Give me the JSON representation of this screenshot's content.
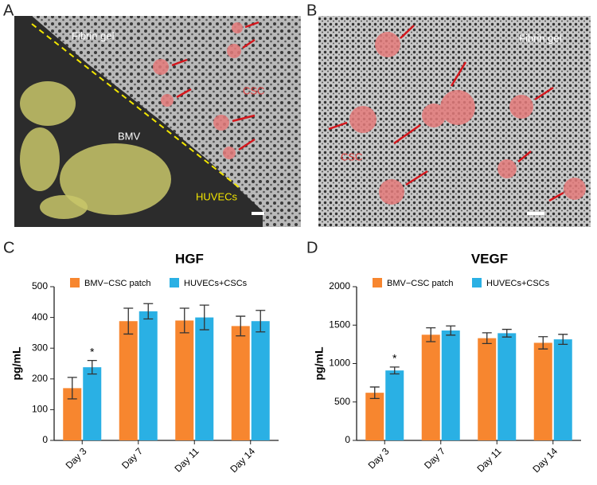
{
  "panels": {
    "a": {
      "label": "A",
      "fibrin": "Fibrin gel",
      "csc": "CSC",
      "bmv": "BMV",
      "huvecs": "HUVECs"
    },
    "b": {
      "label": "B",
      "fibrin": "Fibrin gel",
      "csc": "CSC"
    },
    "c": "C",
    "d": "D"
  },
  "chart_data": [
    {
      "type": "bar",
      "title": "HGF",
      "y_label": "pg/mL",
      "categories": [
        "Day 3",
        "Day 7",
        "Day 11",
        "Day 14"
      ],
      "series": [
        {
          "name": "BMV−CSC patch",
          "color": "#f7862f",
          "values": [
            170,
            388,
            390,
            372
          ],
          "errors": [
            35,
            42,
            40,
            32
          ]
        },
        {
          "name": "HUVECs+CSCs",
          "color": "#2ab0e4",
          "values": [
            238,
            420,
            400,
            388
          ],
          "errors": [
            22,
            25,
            40,
            35
          ]
        }
      ],
      "ylim": [
        0,
        500
      ],
      "yticks": [
        0,
        100,
        200,
        300,
        400,
        500
      ],
      "annotation": "*"
    },
    {
      "type": "bar",
      "title": "VEGF",
      "y_label": "pg/mL",
      "categories": [
        "Day 3",
        "Day 7",
        "Day 11",
        "Day 14"
      ],
      "series": [
        {
          "name": "BMV−CSC patch",
          "color": "#f7862f",
          "values": [
            620,
            1375,
            1330,
            1270
          ],
          "errors": [
            75,
            90,
            70,
            80
          ]
        },
        {
          "name": "HUVECs+CSCs",
          "color": "#2ab0e4",
          "values": [
            910,
            1430,
            1395,
            1315
          ],
          "errors": [
            45,
            60,
            50,
            65
          ]
        }
      ],
      "ylim": [
        0,
        2000
      ],
      "yticks": [
        0,
        500,
        1000,
        1500,
        2000
      ],
      "annotation": "*"
    }
  ]
}
